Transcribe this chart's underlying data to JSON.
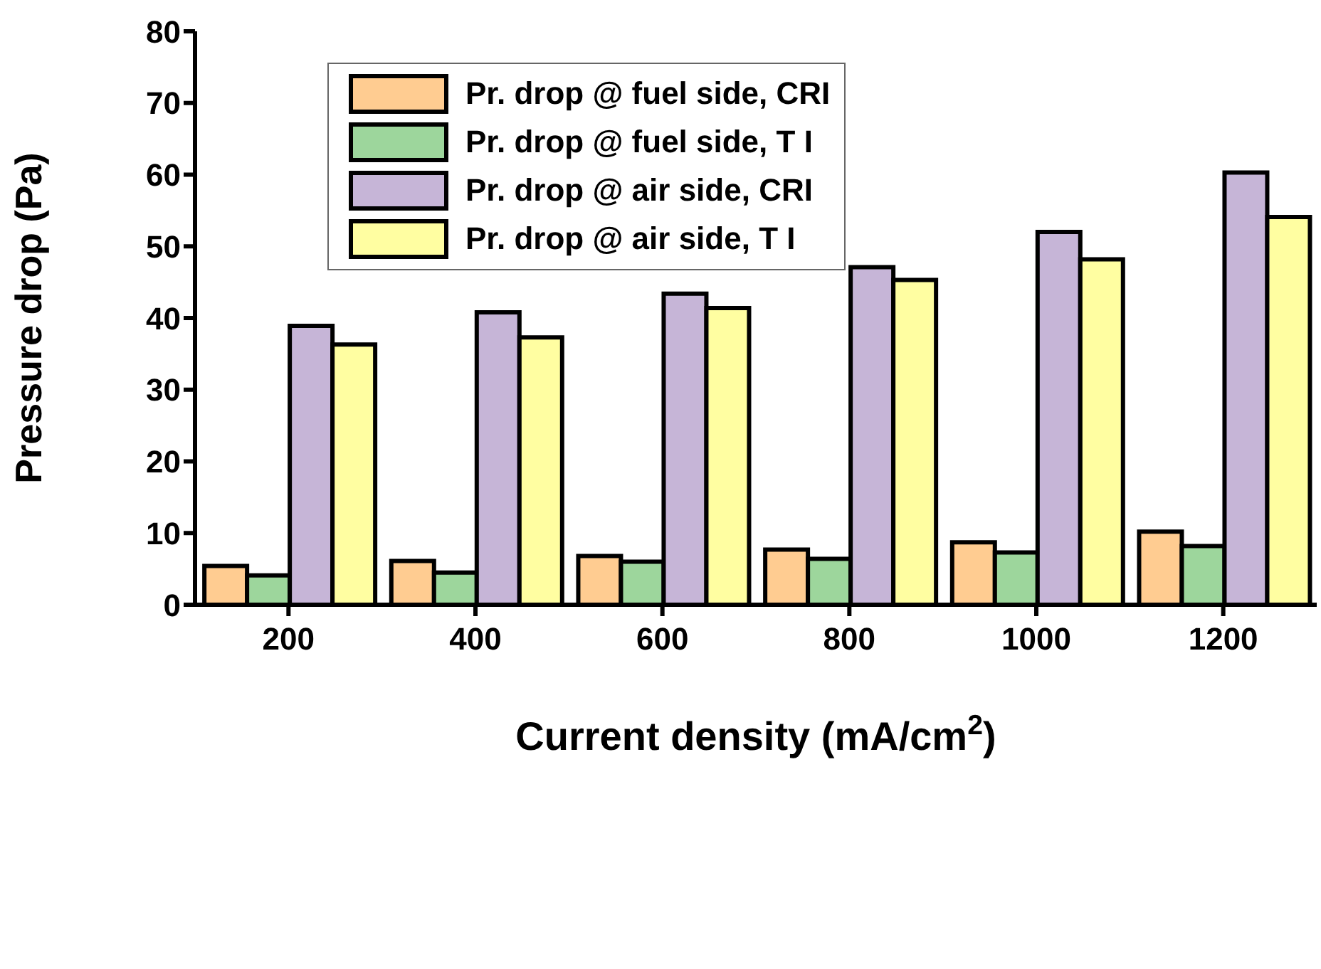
{
  "chart_data": {
    "type": "bar",
    "xlabel": "Current density (mA/cm$^{2}$)",
    "ylabel": "Pressure drop (Pa)",
    "categories": [
      "200",
      "400",
      "600",
      "800",
      "1000",
      "1200"
    ],
    "series": [
      {
        "name": "Pr. drop @ fuel side, CRI",
        "color": "#ffcc91",
        "values": [
          5.4,
          6.1,
          6.8,
          7.7,
          8.7,
          10.2
        ]
      },
      {
        "name": "Pr. drop @ fuel side, T I",
        "color": "#9dd69c",
        "values": [
          4.1,
          4.5,
          6.0,
          6.4,
          7.3,
          8.2
        ]
      },
      {
        "name": "Pr. drop @ air side, CRI",
        "color": "#c6b5d7",
        "values": [
          38.9,
          40.8,
          43.4,
          47.1,
          52.0,
          60.3
        ]
      },
      {
        "name": "Pr. drop @ air side, T I",
        "color": "#fffea1",
        "values": [
          36.3,
          37.3,
          41.4,
          45.3,
          48.2,
          54.1
        ]
      }
    ],
    "ylim": [
      0,
      80
    ],
    "yticks": [
      0,
      10,
      20,
      30,
      40,
      50,
      60,
      70,
      80
    ],
    "legend": "top left"
  }
}
